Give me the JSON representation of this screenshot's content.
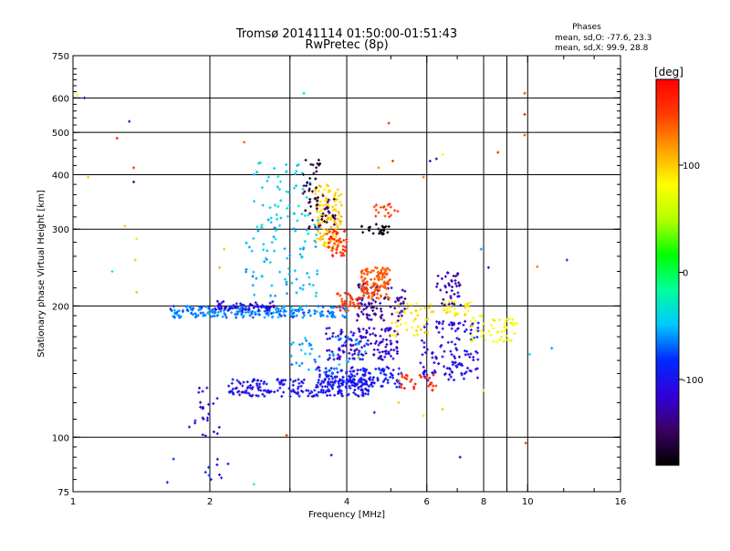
{
  "chart_data": {
    "type": "scatter",
    "title": "Tromsø 20141114 01:50:00-01:51:43",
    "subtitle": "RwPretec (8p)",
    "xlabel": "Frequency [MHz]",
    "ylabel": "Stationary phase Virtual Height [km]",
    "x_scale": "log",
    "y_scale": "log",
    "xlim": [
      1,
      16
    ],
    "ylim": [
      75,
      750
    ],
    "x_ticks": [
      1,
      2,
      4,
      6,
      8,
      10,
      16
    ],
    "x_tick_labels": [
      "1",
      "2",
      "4",
      "6",
      "8",
      "10",
      "16"
    ],
    "x_minor_ticks": [
      3,
      5,
      7,
      9,
      12,
      14
    ],
    "y_ticks": [
      75,
      100,
      200,
      300,
      400,
      500,
      600,
      750
    ],
    "y_tick_labels": [
      "75",
      "100",
      "200",
      "300",
      "400",
      "500",
      "600",
      "750"
    ],
    "x_grid": [
      2,
      3,
      4,
      6,
      8,
      9,
      10
    ],
    "y_grid": [
      100,
      200,
      300,
      400,
      500,
      600
    ],
    "phases": {
      "title": "Phases",
      "line1": "mean, sd,O: -77.6, 23.3",
      "line2": "mean, sd,X:  99.9, 28.8"
    },
    "colorbar": {
      "label": "[deg]",
      "range": [
        -180,
        180
      ],
      "ticks": [
        -100,
        0,
        100
      ],
      "tick_labels": [
        "-100",
        "0",
        "100"
      ],
      "colors": [
        "#000000",
        "#3c0064",
        "#3200dc",
        "#0028ff",
        "#00c8ff",
        "#00ff9b",
        "#00ff00",
        "#b4ff00",
        "#ffff00",
        "#ffa000",
        "#ff3c00",
        "#ff0000"
      ]
    },
    "clusters": [
      {
        "x": [
          1.62,
          4.0
        ],
        "y": [
          188,
          200
        ],
        "phase": -65,
        "n": 230,
        "spread": 0.012
      },
      {
        "x": [
          2.05,
          2.8
        ],
        "y": [
          195,
          205
        ],
        "phase": -110,
        "n": 60,
        "spread": 0.01
      },
      {
        "x": [
          2.2,
          4.6
        ],
        "y": [
          124,
          136
        ],
        "phase": -100,
        "n": 210,
        "spread": 0.012
      },
      {
        "x": [
          3.4,
          5.3
        ],
        "y": [
          130,
          145
        ],
        "phase": -95,
        "n": 160,
        "spread": 0.025
      },
      {
        "x": [
          3.6,
          5.2
        ],
        "y": [
          150,
          178
        ],
        "phase": -115,
        "n": 140,
        "spread": 0.04
      },
      {
        "x": [
          4.2,
          5.4
        ],
        "y": [
          185,
          225
        ],
        "phase": -130,
        "n": 90,
        "spread": 0.03
      },
      {
        "x": [
          4.3,
          5.0
        ],
        "y": [
          208,
          245
        ],
        "phase": 140,
        "n": 120,
        "spread": 0.03
      },
      {
        "x": [
          3.8,
          4.3
        ],
        "y": [
          195,
          215
        ],
        "phase": 150,
        "n": 40,
        "spread": 0.02
      },
      {
        "x": [
          3.4,
          3.9
        ],
        "y": [
          270,
          380
        ],
        "phase": 100,
        "n": 130,
        "spread": 0.04
      },
      {
        "x": [
          3.3,
          3.8
        ],
        "y": [
          300,
          360
        ],
        "phase": -150,
        "n": 35,
        "spread": 0.04
      },
      {
        "x": [
          3.6,
          4.0
        ],
        "y": [
          260,
          300
        ],
        "phase": 155,
        "n": 45,
        "spread": 0.03
      },
      {
        "x": [
          2.4,
          3.5
        ],
        "y": [
          210,
          320
        ],
        "phase": -50,
        "n": 80,
        "spread": 0.06
      },
      {
        "x": [
          2.5,
          3.4
        ],
        "y": [
          300,
          430
        ],
        "phase": -40,
        "n": 50,
        "spread": 0.06
      },
      {
        "x": [
          3.2,
          3.5
        ],
        "y": [
          330,
          440
        ],
        "phase": -160,
        "n": 30,
        "spread": 0.04
      },
      {
        "x": [
          4.3,
          5.0
        ],
        "y": [
          290,
          310
        ],
        "phase": -175,
        "n": 25,
        "spread": 0.015
      },
      {
        "x": [
          4.6,
          5.2
        ],
        "y": [
          320,
          345
        ],
        "phase": 150,
        "n": 18,
        "spread": 0.02
      },
      {
        "x": [
          5.0,
          6.2
        ],
        "y": [
          170,
          205
        ],
        "phase": 90,
        "n": 45,
        "spread": 0.03
      },
      {
        "x": [
          5.8,
          7.8
        ],
        "y": [
          135,
          185
        ],
        "phase": -105,
        "n": 130,
        "spread": 0.03
      },
      {
        "x": [
          6.5,
          7.5
        ],
        "y": [
          190,
          205
        ],
        "phase": 85,
        "n": 30,
        "spread": 0.03
      },
      {
        "x": [
          6.3,
          7.2
        ],
        "y": [
          200,
          240
        ],
        "phase": -125,
        "n": 40,
        "spread": 0.04
      },
      {
        "x": [
          7.5,
          9.5
        ],
        "y": [
          165,
          190
        ],
        "phase": 75,
        "n": 50,
        "spread": 0.03
      },
      {
        "x": [
          5.2,
          6.3
        ],
        "y": [
          128,
          140
        ],
        "phase": 160,
        "n": 30,
        "spread": 0.02
      },
      {
        "x": [
          1.8,
          2.1
        ],
        "y": [
          100,
          130
        ],
        "phase": -110,
        "n": 25,
        "spread": 0.04
      },
      {
        "x": [
          1.6,
          2.2
        ],
        "y": [
          78,
          90
        ],
        "phase": -90,
        "n": 10,
        "spread": 0.05
      },
      {
        "x": [
          3.0,
          4.5
        ],
        "y": [
          140,
          170
        ],
        "phase": -60,
        "n": 50,
        "spread": 0.05
      }
    ],
    "scattered_points": [
      {
        "x": 1.02,
        "y": 610,
        "phase": 80
      },
      {
        "x": 1.06,
        "y": 600,
        "phase": -110
      },
      {
        "x": 1.08,
        "y": 395,
        "phase": 100
      },
      {
        "x": 1.22,
        "y": 240,
        "phase": -20
      },
      {
        "x": 1.25,
        "y": 485,
        "phase": 160
      },
      {
        "x": 1.3,
        "y": 305,
        "phase": 100
      },
      {
        "x": 1.33,
        "y": 530,
        "phase": -120
      },
      {
        "x": 1.36,
        "y": 415,
        "phase": 150
      },
      {
        "x": 1.36,
        "y": 385,
        "phase": -140
      },
      {
        "x": 1.37,
        "y": 255,
        "phase": 40
      },
      {
        "x": 1.38,
        "y": 285,
        "phase": 60
      },
      {
        "x": 1.38,
        "y": 215,
        "phase": 40
      },
      {
        "x": 2.38,
        "y": 475,
        "phase": 140
      },
      {
        "x": 2.1,
        "y": 245,
        "phase": 110
      },
      {
        "x": 2.15,
        "y": 270,
        "phase": 40
      },
      {
        "x": 3.22,
        "y": 615,
        "phase": -40
      },
      {
        "x": 4.95,
        "y": 525,
        "phase": 160
      },
      {
        "x": 4.7,
        "y": 415,
        "phase": 120
      },
      {
        "x": 5.05,
        "y": 430,
        "phase": 150
      },
      {
        "x": 5.9,
        "y": 395,
        "phase": 130
      },
      {
        "x": 6.1,
        "y": 430,
        "phase": -130
      },
      {
        "x": 6.3,
        "y": 435,
        "phase": -150
      },
      {
        "x": 6.5,
        "y": 445,
        "phase": 80
      },
      {
        "x": 7.9,
        "y": 270,
        "phase": -60
      },
      {
        "x": 8.6,
        "y": 450,
        "phase": 160
      },
      {
        "x": 8.2,
        "y": 245,
        "phase": -120
      },
      {
        "x": 9.85,
        "y": 615,
        "phase": 150
      },
      {
        "x": 9.85,
        "y": 550,
        "phase": 170
      },
      {
        "x": 9.85,
        "y": 493,
        "phase": 140
      },
      {
        "x": 10.5,
        "y": 246,
        "phase": 130
      },
      {
        "x": 12.2,
        "y": 255,
        "phase": -80
      },
      {
        "x": 11.3,
        "y": 160,
        "phase": -60
      },
      {
        "x": 10.1,
        "y": 155,
        "phase": -40
      },
      {
        "x": 9.9,
        "y": 97,
        "phase": 150
      },
      {
        "x": 4.6,
        "y": 114,
        "phase": -110
      },
      {
        "x": 5.2,
        "y": 120,
        "phase": 100
      },
      {
        "x": 5.9,
        "y": 112,
        "phase": 60
      },
      {
        "x": 6.5,
        "y": 116,
        "phase": 40
      },
      {
        "x": 7.1,
        "y": 90,
        "phase": -130
      },
      {
        "x": 3.7,
        "y": 91,
        "phase": -120
      },
      {
        "x": 2.95,
        "y": 101,
        "phase": 160
      },
      {
        "x": 2.5,
        "y": 78,
        "phase": -20
      },
      {
        "x": 2.1,
        "y": 82,
        "phase": -110
      },
      {
        "x": 8.0,
        "y": 128,
        "phase": 60
      },
      {
        "x": 4.25,
        "y": 152,
        "phase": 20
      }
    ]
  }
}
